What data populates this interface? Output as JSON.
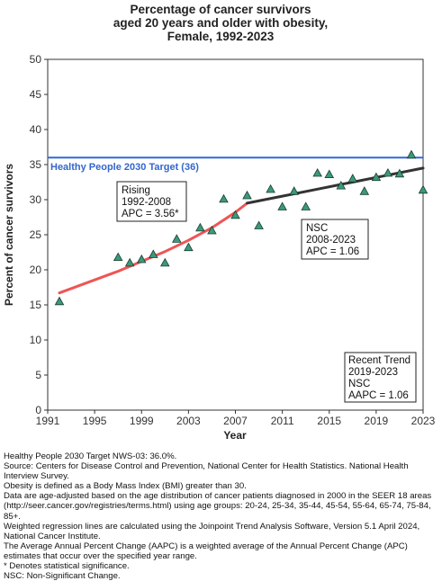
{
  "chart_data": {
    "type": "scatter",
    "title": [
      "Percentage of cancer survivors",
      "aged 20 years and older with obesity,",
      "Female,  1992-2023"
    ],
    "xlabel": "Year",
    "ylabel": "Percent of cancer survivors",
    "xlim": [
      1991,
      2023
    ],
    "ylim": [
      0,
      50
    ],
    "x_ticks": [
      1991,
      1995,
      1999,
      2003,
      2007,
      2011,
      2015,
      2019,
      2023
    ],
    "y_ticks": [
      0,
      5,
      10,
      15,
      20,
      25,
      30,
      35,
      40,
      45,
      50
    ],
    "grid": false,
    "points": {
      "name": "Observed",
      "color": "#3a9a7a",
      "x": [
        1992,
        1997,
        1998,
        1999,
        2000,
        2001,
        2002,
        2003,
        2004,
        2005,
        2006,
        2007,
        2008,
        2009,
        2010,
        2011,
        2012,
        2013,
        2014,
        2015,
        2016,
        2017,
        2018,
        2019,
        2020,
        2021,
        2022,
        2023
      ],
      "y": [
        15.5,
        21.8,
        21.0,
        21.5,
        22.2,
        21.0,
        24.4,
        23.2,
        26.0,
        25.6,
        30.1,
        27.8,
        30.6,
        26.3,
        31.5,
        29.0,
        31.2,
        29.0,
        33.8,
        33.6,
        32.0,
        33.0,
        31.2,
        33.2,
        33.8,
        33.7,
        36.4,
        31.4
      ]
    },
    "trend_segments": [
      {
        "name": "Rising",
        "color": "#ee5555",
        "x": [
          1992,
          1997,
          1999,
          2001,
          2003,
          2005,
          2007,
          2008
        ],
        "y": [
          16.7,
          19.8,
          21.2,
          22.6,
          24.2,
          26.0,
          28.2,
          29.5
        ]
      },
      {
        "name": "NSC",
        "color": "#333333",
        "x": [
          2008,
          2011,
          2014,
          2017,
          2020,
          2023
        ],
        "y": [
          29.5,
          30.5,
          31.5,
          32.5,
          33.5,
          34.5
        ]
      }
    ],
    "target": {
      "value": 36,
      "label": "Healthy People 2030 Target (36)",
      "color": "#3366dd"
    },
    "annotations": [
      {
        "lines": [
          "Rising",
          "1992-2008",
          "APC =  3.56*"
        ],
        "placement": "upper-left"
      },
      {
        "lines": [
          "NSC",
          "2008-2023",
          "APC =  1.06"
        ],
        "placement": "center-right"
      },
      {
        "lines": [
          "Recent Trend",
          "2019-2023",
          "NSC",
          "AAPC =  1.06"
        ],
        "placement": "lower-right"
      }
    ]
  },
  "footnotes": [
    "Healthy People 2030 Target NWS-03: 36.0%.",
    "Source: Centers for Disease Control and Prevention, National Center for Health Statistics. National Health Interview Survey.",
    "Obesity is defined as a Body Mass Index (BMI) greater than 30.",
    "Data are age-adjusted based on the age distribution of cancer patients diagnosed in 2000 in the SEER 18 areas (http://seer.cancer.gov/registries/terms.html) using age groups: 20-24, 25-34, 35-44, 45-54, 55-64, 65-74, 75-84, 85+.",
    "Weighted regression lines are calculated using the Joinpoint Trend Analysis Software, Version 5.1 April 2024, National Cancer Institute.",
    "The Average Annual Percent Change (AAPC) is a weighted average of the Annual Percent Change (APC) estimates that occur over the specified year range.",
    "* Denotes statistical significance.",
    "NSC: Non-Significant Change."
  ]
}
